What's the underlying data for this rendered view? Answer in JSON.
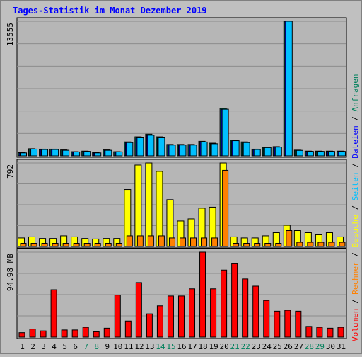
{
  "title": "Tages-Statistik im Monat Dezember 2019",
  "colors": {
    "background": "#c0c0c0",
    "plot_bg": "#b6b6b6",
    "title": "#0000ff",
    "hits": "#00805c",
    "files": "#0000ff",
    "pages": "#00c0ff",
    "visits": "#ffff00",
    "sites": "#ff8000",
    "kbytes": "#ff0000",
    "weekend_day": "#00805c",
    "weekday": "#000000"
  },
  "right_legend": {
    "top": [
      {
        "text": "Anfragen",
        "color": "#00805c"
      },
      {
        "text": "Dateien",
        "color": "#0000ff"
      },
      {
        "text": "Seiten",
        "color": "#00c0ff"
      },
      {
        "text": "Besuche",
        "color": "#ffff00"
      },
      {
        "text": "Rechner",
        "color": "#ff8000"
      },
      {
        "text": "Volumen",
        "color": "#ff0000"
      }
    ],
    "separator": " / "
  },
  "chart_data": [
    {
      "type": "bar",
      "name": "hits-files-pages",
      "max_label": "13555",
      "ylim": [
        0,
        13555
      ],
      "categories": [
        "1",
        "2",
        "3",
        "4",
        "5",
        "6",
        "7",
        "8",
        "9",
        "10",
        "11",
        "12",
        "13",
        "14",
        "15",
        "16",
        "17",
        "18",
        "19",
        "20",
        "21",
        "22",
        "23",
        "24",
        "25",
        "26",
        "27",
        "28",
        "29",
        "30",
        "31"
      ],
      "series": [
        {
          "name": "Anfragen",
          "color": "#00805c",
          "values": [
            320,
            720,
            680,
            680,
            600,
            420,
            480,
            320,
            600,
            420,
            1410,
            1920,
            2190,
            1920,
            1150,
            1150,
            1150,
            1470,
            1280,
            4800,
            1600,
            1410,
            680,
            870,
            930,
            13555,
            580,
            480,
            480,
            480,
            480
          ]
        },
        {
          "name": "Dateien",
          "color": "#0000ff",
          "values": [
            300,
            680,
            640,
            640,
            560,
            400,
            450,
            300,
            560,
            400,
            1340,
            1820,
            2080,
            1820,
            1090,
            1090,
            1090,
            1400,
            1220,
            4700,
            1530,
            1340,
            640,
            830,
            880,
            13555,
            550,
            450,
            450,
            450,
            450
          ]
        },
        {
          "name": "Seiten",
          "color": "#00c0ff",
          "values": [
            300,
            680,
            640,
            640,
            560,
            400,
            450,
            300,
            560,
            400,
            1340,
            1820,
            2080,
            1820,
            1090,
            1090,
            1090,
            1400,
            1220,
            4700,
            1530,
            1340,
            640,
            830,
            880,
            13555,
            550,
            450,
            450,
            450,
            450
          ]
        }
      ]
    },
    {
      "type": "bar",
      "name": "visits-sites",
      "max_label": "792",
      "ylim": [
        0,
        792
      ],
      "categories": [
        "1",
        "2",
        "3",
        "4",
        "5",
        "6",
        "7",
        "8",
        "9",
        "10",
        "11",
        "12",
        "13",
        "14",
        "15",
        "16",
        "17",
        "18",
        "19",
        "20",
        "21",
        "22",
        "23",
        "24",
        "25",
        "26",
        "27",
        "28",
        "29",
        "30",
        "31"
      ],
      "series": [
        {
          "name": "Besuche",
          "color": "#ffff00",
          "values": [
            81,
            91,
            76,
            76,
            101,
            91,
            76,
            71,
            76,
            76,
            540,
            772,
            792,
            712,
            444,
            242,
            262,
            363,
            373,
            792,
            91,
            81,
            81,
            101,
            131,
            201,
            151,
            131,
            111,
            131,
            91
          ]
        },
        {
          "name": "Rechner",
          "color": "#ff8000",
          "values": [
            30,
            30,
            30,
            30,
            30,
            30,
            30,
            30,
            30,
            30,
            101,
            101,
            101,
            101,
            81,
            81,
            81,
            81,
            81,
            722,
            30,
            30,
            30,
            30,
            30,
            151,
            40,
            40,
            40,
            40,
            40
          ]
        }
      ]
    },
    {
      "type": "bar",
      "name": "kbytes",
      "max_label": "94.98 MB",
      "ylim": [
        0,
        94.98
      ],
      "categories": [
        "1",
        "2",
        "3",
        "4",
        "5",
        "6",
        "7",
        "8",
        "9",
        "10",
        "11",
        "12",
        "13",
        "14",
        "15",
        "16",
        "17",
        "18",
        "19",
        "20",
        "21",
        "22",
        "23",
        "24",
        "25",
        "26",
        "27",
        "28",
        "29",
        "30",
        "31"
      ],
      "series": [
        {
          "name": "Volumen",
          "color": "#ff0000",
          "values": [
            5,
            9,
            7,
            53,
            8,
            8,
            11,
            6,
            10,
            47,
            18,
            61,
            26,
            35,
            46,
            46,
            54,
            95,
            54,
            75,
            82,
            65,
            57,
            41,
            29,
            30,
            29,
            12,
            11,
            10,
            11
          ]
        }
      ]
    }
  ],
  "day_colors": [
    "#000000",
    "#000000",
    "#000000",
    "#000000",
    "#000000",
    "#000000",
    "#00805c",
    "#00805c",
    "#000000",
    "#000000",
    "#000000",
    "#000000",
    "#000000",
    "#00805c",
    "#00805c",
    "#000000",
    "#000000",
    "#000000",
    "#000000",
    "#000000",
    "#00805c",
    "#00805c",
    "#000000",
    "#000000",
    "#000000",
    "#000000",
    "#000000",
    "#00805c",
    "#00805c",
    "#000000",
    "#000000"
  ]
}
